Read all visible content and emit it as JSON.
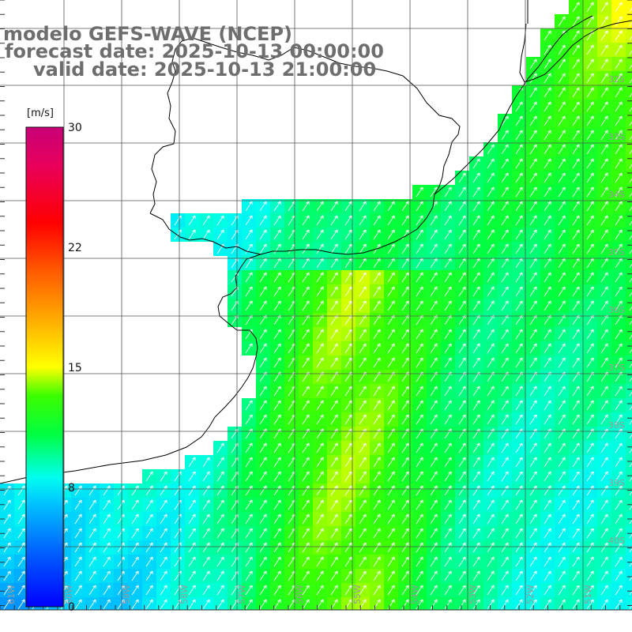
{
  "title": {
    "line1": "modelo GEFS-WAVE (NCEP)",
    "line2": "forecast date: 2025-10-13 00:00:00",
    "line3": "valid date: 2025-10-13 21:00:00"
  },
  "colorbar": {
    "unit": "[m/s]",
    "ticks": [
      "30",
      "22",
      "15",
      "8",
      "0"
    ],
    "colors": [
      "#0000ff",
      "#0066ff",
      "#00c8ff",
      "#00ffee",
      "#00ff40",
      "#3cff00",
      "#aaff00",
      "#ffff00",
      "#ffaa00",
      "#ff5a00",
      "#ff0000",
      "#e8005a",
      "#c80078"
    ]
  },
  "map": {
    "variable": "wind speed",
    "lat_labels": [
      "32S",
      "33S",
      "34S",
      "35S",
      "36S",
      "37S",
      "38S",
      "39S",
      "40S"
    ],
    "lon_labels": [
      "61W",
      "60W",
      "59W",
      "58W",
      "57W",
      "56W",
      "55W",
      "54W",
      "53W",
      "52W",
      "51W"
    ],
    "land_color": "#ffffff",
    "coast_color": "#000000",
    "grid_color": "#555555",
    "arrow_color": "#ffffff",
    "wind_speed_range_ms": [
      0,
      30
    ]
  }
}
